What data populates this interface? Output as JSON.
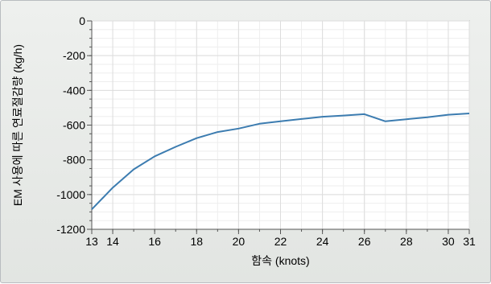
{
  "chart_data": {
    "type": "line",
    "xlabel": "함속 (knots)",
    "ylabel": "EM 사용에 따른 연료절감량 (kg/h)",
    "xlim": [
      13,
      31
    ],
    "ylim": [
      -1200,
      0
    ],
    "x_ticks": [
      13,
      14,
      16,
      18,
      20,
      22,
      24,
      26,
      28,
      30,
      31
    ],
    "y_ticks": [
      0,
      -200,
      -400,
      -600,
      -800,
      -1000,
      -1200
    ],
    "grid": true,
    "series": [
      {
        "x": [
          13,
          14,
          15,
          16,
          17,
          18,
          19,
          20,
          21,
          22,
          23,
          24,
          25,
          26,
          27,
          28,
          29,
          30,
          31
        ],
        "y": [
          -1085,
          -960,
          -855,
          -780,
          -725,
          -675,
          -640,
          -620,
          -592,
          -578,
          -565,
          -552,
          -545,
          -537,
          -578,
          -566,
          -555,
          -540,
          -533
        ],
        "color": "#3c7cb0"
      }
    ]
  }
}
